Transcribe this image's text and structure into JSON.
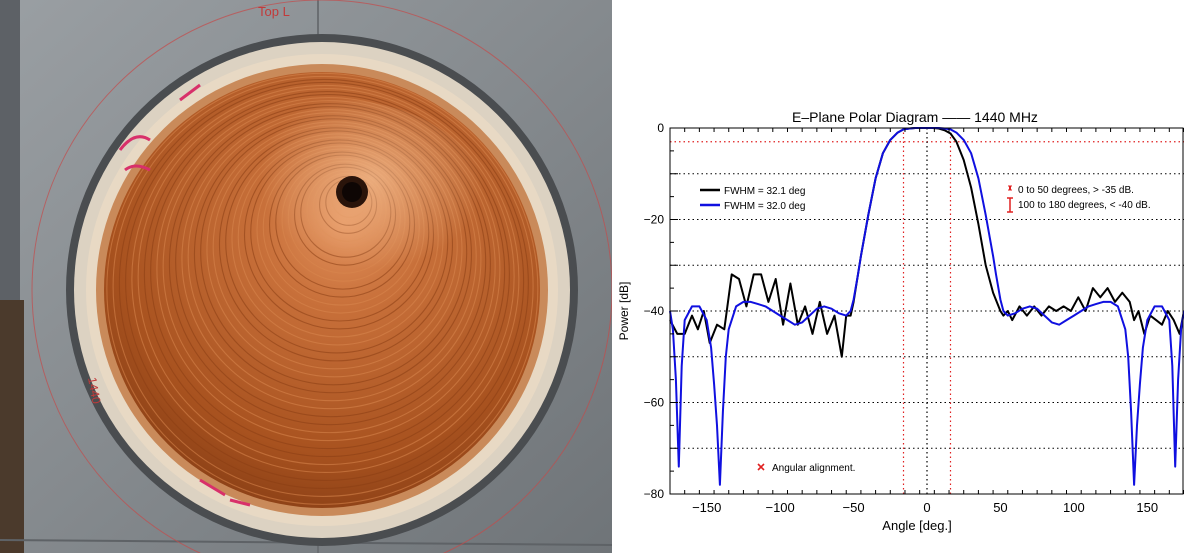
{
  "photo": {
    "plate_label": "Top L",
    "side_label": "1440",
    "colors": {
      "copper": "#b9602a",
      "plate": "#8d9296",
      "ring": "#d8d4c8"
    },
    "icon": "corrugated-horn-photo"
  },
  "chart_data": {
    "type": "line",
    "title": "E–Plane Polar Diagram  ——  1440 MHz",
    "xlabel": "Angle [deg.]",
    "ylabel": "Power [dB]",
    "xlim": [
      -175,
      175
    ],
    "ylim": [
      -80,
      0
    ],
    "xticks": [
      -150,
      -100,
      -50,
      0,
      50,
      100,
      150
    ],
    "yticks": [
      -80,
      -60,
      -40,
      -20,
      0
    ],
    "grid": true,
    "legend_position": "top-left",
    "series": [
      {
        "name": "FWHM = 32.1 deg",
        "color": "#000000",
        "x": [
          -175,
          -170,
          -165,
          -160,
          -156,
          -152,
          -148,
          -143,
          -138,
          -133,
          -128,
          -123,
          -118,
          -113,
          -108,
          -103,
          -98,
          -93,
          -88,
          -83,
          -78,
          -73,
          -68,
          -63,
          -58,
          -55,
          -52,
          -50,
          -45,
          -40,
          -35,
          -30,
          -25,
          -20,
          -16,
          -12,
          -8,
          -4,
          0,
          4,
          8,
          12,
          16,
          20,
          25,
          30,
          35,
          40,
          45,
          50,
          52,
          55,
          58,
          63,
          68,
          73,
          78,
          83,
          88,
          93,
          98,
          103,
          108,
          113,
          118,
          123,
          128,
          133,
          138,
          141,
          144,
          148,
          152,
          156,
          160,
          164,
          168,
          172,
          175
        ],
        "y": [
          -42,
          -45,
          -45,
          -41,
          -44,
          -40,
          -47,
          -43,
          -44,
          -32,
          -33,
          -39,
          -32,
          -32,
          -38,
          -33,
          -43,
          -34,
          -43,
          -39,
          -45,
          -38,
          -45,
          -41,
          -50,
          -41,
          -41,
          -38,
          -28,
          -19,
          -11,
          -5.5,
          -2.6,
          -1.0,
          -0.3,
          -0.1,
          0,
          0,
          0,
          0,
          -0.1,
          -0.5,
          -1.2,
          -3.0,
          -7,
          -13,
          -21,
          -30,
          -36,
          -40,
          -41,
          -40,
          -42,
          -39,
          -41,
          -39,
          -41,
          -39,
          -40,
          -39,
          -40,
          -37,
          -40,
          -35,
          -37,
          -35,
          -38,
          -36,
          -38,
          -42,
          -40,
          -45,
          -41,
          -42,
          -43,
          -40,
          -42,
          -45,
          -40
        ]
      },
      {
        "name": "FWHM = 32.0 deg",
        "color": "#1010e0",
        "x": [
          -175,
          -173,
          -171,
          -169,
          -167,
          -165,
          -160,
          -155,
          -150,
          -147,
          -145,
          -143,
          -141,
          -139,
          -137,
          -135,
          -130,
          -125,
          -120,
          -115,
          -110,
          -105,
          -100,
          -95,
          -90,
          -85,
          -80,
          -75,
          -70,
          -65,
          -60,
          -55,
          -52,
          -50,
          -47,
          -45,
          -40,
          -35,
          -30,
          -25,
          -20,
          -16,
          -12,
          -8,
          -4,
          0,
          4,
          8,
          12,
          16,
          20,
          25,
          30,
          35,
          40,
          45,
          47,
          50,
          52,
          55,
          60,
          65,
          70,
          75,
          80,
          85,
          90,
          95,
          100,
          105,
          110,
          115,
          120,
          125,
          130,
          133,
          135,
          137,
          139,
          141,
          143,
          145,
          147,
          150,
          155,
          160,
          165,
          167,
          169,
          171,
          173,
          175
        ],
        "y": [
          -40,
          -44,
          -55,
          -74,
          -52,
          -42,
          -39,
          -39,
          -42,
          -48,
          -56,
          -65,
          -78,
          -62,
          -50,
          -44,
          -39,
          -38,
          -38,
          -38.5,
          -39,
          -40,
          -41,
          -42,
          -43,
          -42.5,
          -41,
          -39.5,
          -39,
          -39.5,
          -40.5,
          -41,
          -40,
          -37.5,
          -32,
          -28,
          -19,
          -11,
          -5.5,
          -2.6,
          -1.0,
          -0.3,
          -0.1,
          0,
          0,
          0,
          0,
          0,
          -0.1,
          -0.3,
          -1.0,
          -2.6,
          -5.5,
          -11,
          -19,
          -28,
          -32,
          -37.5,
          -40,
          -41,
          -40.5,
          -39.5,
          -39,
          -39.5,
          -41,
          -42.5,
          -43,
          -42,
          -41,
          -40,
          -39,
          -38.5,
          -38,
          -38,
          -39,
          -42,
          -44,
          -50,
          -62,
          -78,
          -65,
          -56,
          -48,
          -42,
          -39,
          -39,
          -42,
          -52,
          -74,
          -55,
          -44,
          -40
        ]
      }
    ],
    "hlines": [
      {
        "y": -3,
        "color": "#e02020",
        "style": "dotted"
      }
    ],
    "vlines": [
      {
        "x": -16,
        "color": "#e02020",
        "style": "dotted"
      },
      {
        "x": 0,
        "color": "#000000",
        "style": "dotted"
      },
      {
        "x": 16,
        "color": "#e02020",
        "style": "dotted"
      }
    ],
    "annotations": [
      {
        "text": "0 to 50 degrees, > -35 dB.",
        "marker": "small-bar",
        "color": "#e02020"
      },
      {
        "text": "100 to 180 degrees, < -40 dB.",
        "marker": "tall-bar",
        "color": "#e02020"
      },
      {
        "text": "Angular alignment.",
        "marker": "x",
        "color": "#e02020"
      }
    ]
  }
}
